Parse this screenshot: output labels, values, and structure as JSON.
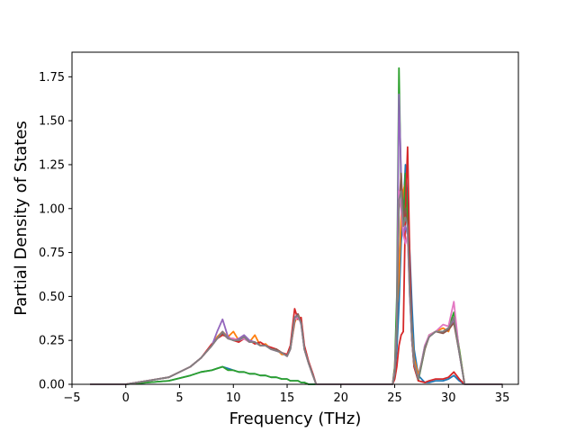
{
  "chart_data": {
    "type": "line",
    "title": "",
    "xlabel": "Frequency (THz)",
    "ylabel": "Partial Density of States",
    "xlim": [
      -5,
      36.5
    ],
    "ylim": [
      0,
      1.89
    ],
    "xticks": [
      -5,
      0,
      5,
      10,
      15,
      20,
      25,
      30,
      35
    ],
    "xtick_labels": [
      "−5",
      "0",
      "5",
      "10",
      "15",
      "20",
      "25",
      "30",
      "35"
    ],
    "yticks": [
      0,
      0.25,
      0.5,
      0.75,
      1.0,
      1.25,
      1.5,
      1.75
    ],
    "ytick_labels": [
      "0.00",
      "0.25",
      "0.50",
      "0.75",
      "1.00",
      "1.25",
      "1.50",
      "1.75"
    ],
    "grid": false,
    "legend": "none",
    "series_colors": [
      "#1f77b4",
      "#ff7f0e",
      "#2ca02c",
      "#d62728",
      "#9467bd",
      "#8c564b",
      "#e377c2",
      "#7f7f7f"
    ],
    "series": [
      {
        "x": [
          -3.3,
          0,
          2,
          4,
          6,
          7,
          8,
          8.5,
          9,
          9.5,
          10,
          10.5,
          11,
          11.5,
          12,
          12.5,
          13,
          13.5,
          14,
          14.5,
          15,
          15.3,
          15.7,
          16,
          16.3,
          16.6,
          17,
          17.4,
          17.7,
          24.8,
          25,
          25.2,
          25.4,
          25.6,
          25.8,
          26,
          26.2,
          26.4,
          26.6,
          26.8,
          27.2,
          27.8,
          28.2,
          28.8,
          29.5,
          30,
          30.5,
          31,
          31.5,
          35
        ],
        "y": [
          0,
          0,
          0.01,
          0.02,
          0.05,
          0.07,
          0.08,
          0.09,
          0.1,
          0.09,
          0.08,
          0.07,
          0.07,
          0.06,
          0.06,
          0.05,
          0.05,
          0.04,
          0.04,
          0.03,
          0.03,
          0.02,
          0.02,
          0.02,
          0.01,
          0.01,
          0.0,
          0.0,
          0,
          0,
          0.05,
          0.2,
          0.45,
          0.8,
          1.0,
          1.25,
          1.05,
          0.75,
          0.45,
          0.2,
          0.05,
          0.01,
          0.01,
          0.02,
          0.02,
          0.03,
          0.05,
          0.02,
          0,
          0
        ]
      },
      {
        "x": [
          -3.3,
          0,
          2,
          4,
          6,
          7,
          8,
          8.5,
          9,
          9.5,
          10,
          10.5,
          11,
          11.5,
          12,
          12.5,
          13,
          13.5,
          14,
          14.5,
          15,
          15.3,
          15.7,
          16,
          16.3,
          16.6,
          17,
          17.4,
          17.7,
          24.8,
          25,
          25.2,
          25.4,
          25.6,
          25.8,
          26,
          26.2,
          26.4,
          26.6,
          26.8,
          27.2,
          27.8,
          28.2,
          28.8,
          29.5,
          30,
          30.5,
          31,
          31.5,
          35
        ],
        "y": [
          0,
          0,
          0.02,
          0.04,
          0.1,
          0.15,
          0.22,
          0.27,
          0.3,
          0.27,
          0.3,
          0.25,
          0.27,
          0.24,
          0.28,
          0.22,
          0.23,
          0.2,
          0.2,
          0.17,
          0.17,
          0.2,
          0.35,
          0.4,
          0.36,
          0.2,
          0.12,
          0.05,
          0,
          0,
          0.1,
          0.4,
          0.6,
          0.95,
          1.1,
          1.15,
          0.95,
          0.6,
          0.3,
          0.15,
          0.05,
          0.2,
          0.28,
          0.3,
          0.32,
          0.3,
          0.38,
          0.2,
          0,
          0
        ]
      },
      {
        "x": [
          -3.3,
          0,
          2,
          4,
          6,
          7,
          8,
          8.5,
          9,
          9.5,
          10,
          10.5,
          11,
          11.5,
          12,
          12.5,
          13,
          13.5,
          14,
          14.5,
          15,
          15.3,
          15.7,
          16,
          16.3,
          16.6,
          17,
          17.4,
          17.7,
          24.8,
          25,
          25.2,
          25.4,
          25.6,
          25.8,
          26,
          26.2,
          26.4,
          26.6,
          26.8,
          27.2,
          27.8,
          28.2,
          28.8,
          29.5,
          30,
          30.5,
          31,
          31.5,
          35
        ],
        "y": [
          0,
          0,
          0.01,
          0.02,
          0.05,
          0.07,
          0.08,
          0.09,
          0.1,
          0.08,
          0.08,
          0.07,
          0.07,
          0.06,
          0.06,
          0.05,
          0.05,
          0.04,
          0.04,
          0.03,
          0.03,
          0.02,
          0.02,
          0.02,
          0.01,
          0.01,
          0.0,
          0.0,
          0,
          0,
          0.1,
          0.5,
          1.8,
          1.1,
          0.9,
          1.2,
          0.95,
          0.55,
          0.25,
          0.1,
          0.02,
          0.2,
          0.28,
          0.3,
          0.3,
          0.32,
          0.41,
          0.2,
          0,
          0
        ]
      },
      {
        "x": [
          -3.3,
          0,
          2,
          4,
          6,
          7,
          8,
          8.5,
          9,
          9.5,
          10,
          10.5,
          11,
          11.5,
          12,
          12.5,
          13,
          13.5,
          14,
          14.5,
          15,
          15.3,
          15.7,
          16,
          16.3,
          16.6,
          17,
          17.4,
          17.7,
          24.8,
          25,
          25.2,
          25.4,
          25.6,
          25.8,
          26,
          26.2,
          26.4,
          26.6,
          26.8,
          27.2,
          27.8,
          28.2,
          28.8,
          29.5,
          30,
          30.5,
          31,
          31.5,
          35
        ],
        "y": [
          0,
          0,
          0.02,
          0.04,
          0.1,
          0.15,
          0.23,
          0.26,
          0.28,
          0.27,
          0.25,
          0.24,
          0.26,
          0.25,
          0.23,
          0.24,
          0.22,
          0.21,
          0.2,
          0.18,
          0.17,
          0.22,
          0.43,
          0.37,
          0.38,
          0.22,
          0.13,
          0.06,
          0,
          0,
          0.03,
          0.1,
          0.22,
          0.28,
          0.3,
          1.0,
          1.35,
          0.7,
          0.25,
          0.1,
          0.02,
          0.01,
          0.02,
          0.03,
          0.03,
          0.04,
          0.07,
          0.03,
          0,
          0
        ]
      },
      {
        "x": [
          -3.3,
          0,
          2,
          4,
          6,
          7,
          8,
          8.5,
          9,
          9.5,
          10,
          10.5,
          11,
          11.5,
          12,
          12.5,
          13,
          13.5,
          14,
          14.5,
          15,
          15.3,
          15.7,
          16,
          16.3,
          16.6,
          17,
          17.4,
          17.7,
          24.8,
          25,
          25.2,
          25.4,
          25.6,
          25.8,
          26,
          26.2,
          26.4,
          26.6,
          26.8,
          27.2,
          27.8,
          28.2,
          28.8,
          29.5,
          30,
          30.5,
          31,
          31.5,
          35
        ],
        "y": [
          0,
          0,
          0.02,
          0.04,
          0.1,
          0.15,
          0.22,
          0.3,
          0.37,
          0.27,
          0.25,
          0.26,
          0.28,
          0.25,
          0.24,
          0.22,
          0.22,
          0.2,
          0.19,
          0.18,
          0.16,
          0.2,
          0.38,
          0.4,
          0.34,
          0.2,
          0.12,
          0.05,
          0,
          0,
          0.08,
          0.35,
          1.65,
          1.2,
          0.85,
          0.9,
          0.85,
          0.5,
          0.25,
          0.12,
          0.03,
          0.22,
          0.27,
          0.3,
          0.3,
          0.32,
          0.36,
          0.18,
          0,
          0
        ]
      },
      {
        "x": [
          -3.3,
          0,
          2,
          4,
          6,
          7,
          8,
          8.5,
          9,
          9.5,
          10,
          10.5,
          11,
          11.5,
          12,
          12.5,
          13,
          13.5,
          14,
          14.5,
          15,
          15.3,
          15.7,
          16,
          16.3,
          16.6,
          17,
          17.4,
          17.7,
          24.8,
          25,
          25.2,
          25.4,
          25.6,
          25.8,
          26,
          26.2,
          26.4,
          26.6,
          26.8,
          27.2,
          27.8,
          28.2,
          28.8,
          29.5,
          30,
          30.5,
          31,
          31.5,
          35
        ],
        "y": [
          0,
          0,
          0.02,
          0.04,
          0.1,
          0.15,
          0.22,
          0.26,
          0.29,
          0.26,
          0.26,
          0.25,
          0.26,
          0.24,
          0.24,
          0.22,
          0.22,
          0.2,
          0.2,
          0.18,
          0.16,
          0.2,
          0.36,
          0.4,
          0.35,
          0.2,
          0.12,
          0.05,
          0,
          0,
          0.06,
          0.3,
          1.0,
          1.2,
          0.95,
          1.0,
          0.9,
          0.55,
          0.28,
          0.12,
          0.03,
          0.2,
          0.27,
          0.3,
          0.29,
          0.31,
          0.35,
          0.18,
          0,
          0
        ]
      },
      {
        "x": [
          -3.3,
          0,
          2,
          4,
          6,
          7,
          8,
          8.5,
          9,
          9.5,
          10,
          10.5,
          11,
          11.5,
          12,
          12.5,
          13,
          13.5,
          14,
          14.5,
          15,
          15.3,
          15.7,
          16,
          16.3,
          16.6,
          17,
          17.4,
          17.7,
          24.8,
          25,
          25.2,
          25.4,
          25.6,
          25.8,
          26,
          26.2,
          26.4,
          26.6,
          26.8,
          27.2,
          27.8,
          28.2,
          28.8,
          29.5,
          30,
          30.5,
          31,
          31.5,
          35
        ],
        "y": [
          0,
          0,
          0.02,
          0.04,
          0.1,
          0.15,
          0.22,
          0.26,
          0.3,
          0.26,
          0.26,
          0.25,
          0.26,
          0.24,
          0.24,
          0.22,
          0.22,
          0.2,
          0.19,
          0.18,
          0.16,
          0.2,
          0.37,
          0.38,
          0.35,
          0.2,
          0.12,
          0.05,
          0,
          0,
          0.07,
          0.33,
          1.1,
          1.0,
          0.85,
          0.8,
          0.85,
          0.5,
          0.26,
          0.12,
          0.03,
          0.22,
          0.28,
          0.3,
          0.34,
          0.33,
          0.47,
          0.18,
          0,
          0
        ]
      },
      {
        "x": [
          -3.3,
          0,
          2,
          4,
          6,
          7,
          8,
          8.5,
          9,
          9.5,
          10,
          10.5,
          11,
          11.5,
          12,
          12.5,
          13,
          13.5,
          14,
          14.5,
          15,
          15.3,
          15.7,
          16,
          16.3,
          16.6,
          17,
          17.4,
          17.7,
          24.8,
          25,
          25.2,
          25.4,
          25.6,
          25.8,
          26,
          26.2,
          26.4,
          26.6,
          26.8,
          27.2,
          27.8,
          28.2,
          28.8,
          29.5,
          30,
          30.5,
          31,
          31.5,
          35
        ],
        "y": [
          0,
          0,
          0.02,
          0.04,
          0.1,
          0.15,
          0.22,
          0.26,
          0.3,
          0.26,
          0.25,
          0.25,
          0.27,
          0.24,
          0.24,
          0.22,
          0.22,
          0.2,
          0.19,
          0.18,
          0.16,
          0.2,
          0.38,
          0.39,
          0.35,
          0.2,
          0.12,
          0.05,
          0,
          0,
          0.06,
          0.3,
          1.05,
          1.1,
          0.9,
          0.95,
          0.9,
          0.52,
          0.27,
          0.12,
          0.03,
          0.21,
          0.27,
          0.3,
          0.3,
          0.32,
          0.38,
          0.18,
          0,
          0
        ]
      }
    ]
  }
}
